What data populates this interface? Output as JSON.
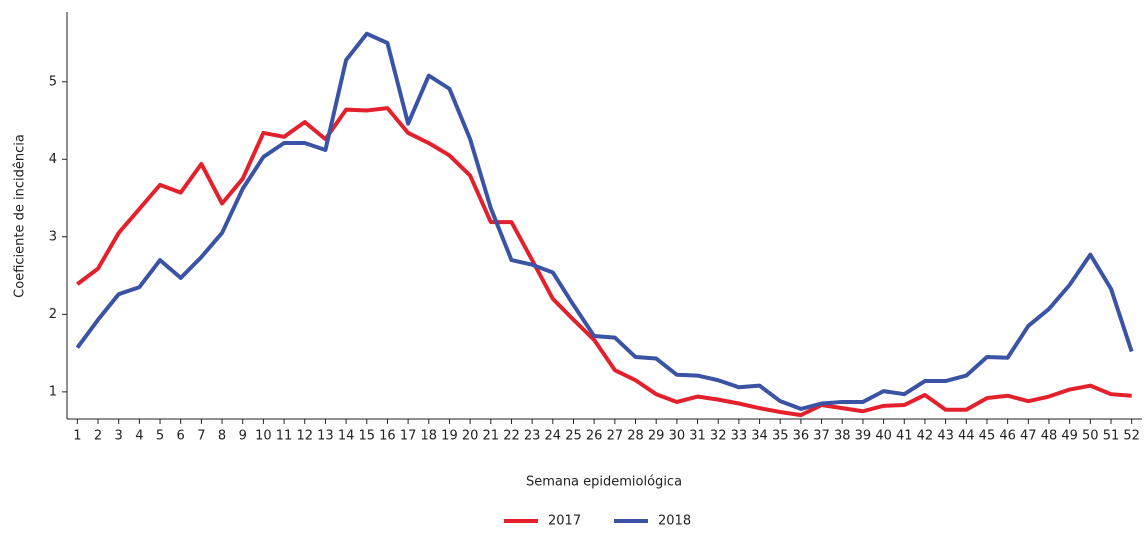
{
  "chart_data": {
    "type": "line",
    "x_label": "Semana epidemiológica",
    "y_label": "Coeficiente de incidência",
    "categories": [
      "1",
      "2",
      "3",
      "4",
      "5",
      "6",
      "7",
      "8",
      "9",
      "10",
      "11",
      "12",
      "13",
      "14",
      "15",
      "16",
      "17",
      "18",
      "19",
      "20",
      "21",
      "22",
      "23",
      "24",
      "25",
      "26",
      "27",
      "28",
      "29",
      "30",
      "31",
      "32",
      "33",
      "34",
      "35",
      "36",
      "37",
      "38",
      "39",
      "40",
      "41",
      "42",
      "43",
      "44",
      "45",
      "46",
      "47",
      "48",
      "49",
      "50",
      "51",
      "52"
    ],
    "series": [
      {
        "name": "2017",
        "color": "#e3202b",
        "values": [
          2.39,
          2.59,
          3.05,
          3.36,
          3.67,
          3.57,
          3.94,
          3.43,
          3.75,
          4.34,
          4.29,
          4.48,
          4.26,
          4.64,
          4.63,
          4.66,
          4.34,
          4.21,
          4.05,
          3.79,
          3.19,
          3.19,
          2.7,
          2.2,
          1.93,
          1.67,
          1.28,
          1.15,
          0.97,
          0.87,
          0.94,
          0.9,
          0.85,
          0.79,
          0.74,
          0.7,
          0.83,
          0.79,
          0.75,
          0.82,
          0.83,
          0.96,
          0.77,
          0.77,
          0.92,
          0.95,
          0.88,
          0.94,
          1.03,
          1.08,
          0.97,
          0.95
        ]
      },
      {
        "name": "2018",
        "color": "#3a53a4",
        "values": [
          1.57,
          1.93,
          2.26,
          2.35,
          2.7,
          2.47,
          2.74,
          3.05,
          3.62,
          4.03,
          4.21,
          4.21,
          4.12,
          5.28,
          5.62,
          5.5,
          4.46,
          5.08,
          4.91,
          4.26,
          3.37,
          2.7,
          2.64,
          2.54,
          2.12,
          1.72,
          1.7,
          1.45,
          1.43,
          1.22,
          1.21,
          1.15,
          1.06,
          1.08,
          0.88,
          0.78,
          0.85,
          0.87,
          0.87,
          1.01,
          0.97,
          1.14,
          1.14,
          1.21,
          1.45,
          1.44,
          1.85,
          2.07,
          2.38,
          2.77,
          2.33,
          1.52
        ]
      }
    ],
    "ylim": [
      0.65,
      5.9
    ],
    "yticks": [
      1,
      2,
      3,
      4,
      5
    ],
    "grid": false,
    "legend": "bottom"
  }
}
